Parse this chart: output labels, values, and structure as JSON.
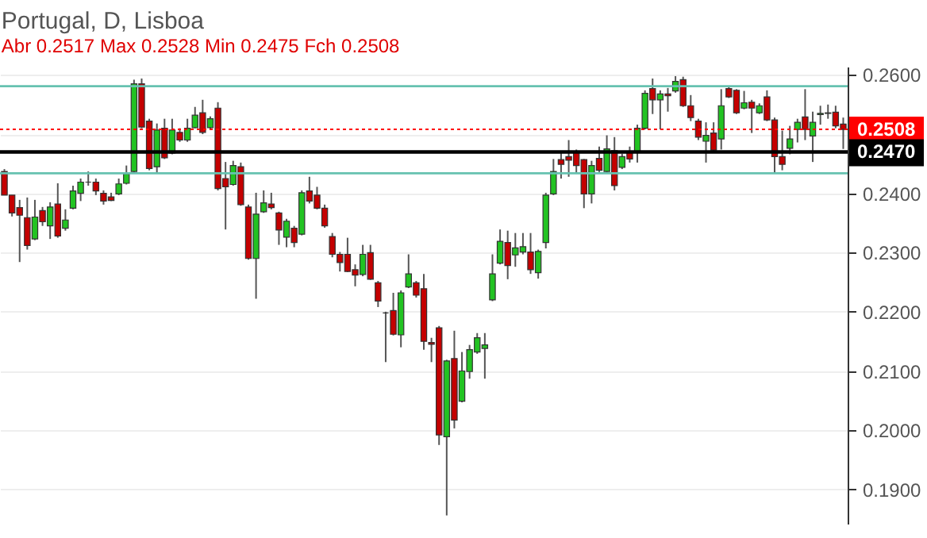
{
  "chart_data": {
    "type": "candlestick",
    "title": "Portugal, D, Lisboa",
    "annotations": [
      "Abr 0.2517 Max 0.2528 Min 0.2475 Fch 0.2508"
    ],
    "categories": [
      null,
      null,
      null,
      null,
      null,
      null,
      null,
      null,
      null,
      null,
      null,
      null,
      null,
      null,
      null,
      null,
      null,
      null,
      null,
      null,
      null,
      null,
      null,
      null,
      null,
      null,
      null,
      null,
      null,
      null,
      null,
      null,
      null,
      null,
      null,
      null,
      null,
      null,
      null,
      null,
      null,
      null,
      null,
      null,
      null,
      null,
      null,
      null,
      null,
      null,
      null,
      null,
      null,
      null,
      null,
      null,
      null,
      null,
      null,
      null,
      null,
      null,
      null,
      null,
      null,
      null,
      null,
      null,
      null,
      null,
      null,
      null,
      null,
      null,
      null,
      null,
      null,
      null,
      null,
      null,
      null,
      null,
      null,
      null,
      null,
      null,
      null,
      null,
      null,
      null,
      null,
      null,
      null,
      null,
      null,
      null,
      null,
      null,
      null,
      null,
      null,
      null,
      null,
      null,
      null,
      null,
      null,
      null,
      null,
      null,
      null
    ],
    "ohlc": [
      [
        0.2437,
        0.2441,
        0.2397,
        0.2397
      ],
      [
        0.2397,
        0.2397,
        0.2361,
        0.2367
      ],
      [
        0.2376,
        0.2389,
        0.2284,
        0.2363
      ],
      [
        0.2359,
        0.2393,
        0.2305,
        0.2312
      ],
      [
        0.2323,
        0.2389,
        0.2321,
        0.236
      ],
      [
        0.2371,
        0.2377,
        0.2345,
        0.2352
      ],
      [
        0.2345,
        0.2385,
        0.2323,
        0.2377
      ],
      [
        0.2382,
        0.2417,
        0.2325,
        0.2328
      ],
      [
        0.2341,
        0.2373,
        0.2337,
        0.2355
      ],
      [
        0.2375,
        0.2413,
        0.2373,
        0.2404
      ],
      [
        0.24,
        0.2425,
        0.2387,
        0.2419
      ],
      [
        0.2419,
        0.2437,
        0.2413,
        0.2419
      ],
      [
        0.2419,
        0.2425,
        0.2397,
        0.2404
      ],
      [
        0.24,
        0.2405,
        0.2381,
        0.2387
      ],
      [
        0.2394,
        0.2401,
        0.2387,
        0.2388
      ],
      [
        0.2399,
        0.2425,
        0.2397,
        0.2416
      ],
      [
        0.2417,
        0.2447,
        0.2415,
        0.2433
      ],
      [
        0.2437,
        0.2592,
        0.2436,
        0.2585
      ],
      [
        0.2585,
        0.2594,
        0.251,
        0.2512
      ],
      [
        0.2522,
        0.2526,
        0.2439,
        0.2442
      ],
      [
        0.2445,
        0.2518,
        0.2433,
        0.2507
      ],
      [
        0.251,
        0.2526,
        0.2458,
        0.246
      ],
      [
        0.2468,
        0.2526,
        0.2466,
        0.2507
      ],
      [
        0.2503,
        0.251,
        0.2487,
        0.249
      ],
      [
        0.249,
        0.2526,
        0.2487,
        0.251
      ],
      [
        0.2511,
        0.2546,
        0.251,
        0.2532
      ],
      [
        0.2536,
        0.2558,
        0.25,
        0.2503
      ],
      [
        0.2511,
        0.253,
        0.2508,
        0.2526
      ],
      [
        0.2544,
        0.2554,
        0.2405,
        0.2408
      ],
      [
        0.2425,
        0.2453,
        0.2339,
        0.2411
      ],
      [
        0.2415,
        0.2455,
        0.2413,
        0.2447
      ],
      [
        0.2445,
        0.2452,
        0.2379,
        0.2381
      ],
      [
        0.2377,
        0.2381,
        0.2288,
        0.229
      ],
      [
        0.229,
        0.2401,
        0.2222,
        0.2365
      ],
      [
        0.2369,
        0.2405,
        0.2367,
        0.2384
      ],
      [
        0.2382,
        0.2401,
        0.2373,
        0.2376
      ],
      [
        0.2367,
        0.2369,
        0.2313,
        0.2338
      ],
      [
        0.2326,
        0.2357,
        0.2309,
        0.2353
      ],
      [
        0.2341,
        0.2345,
        0.2309,
        0.2317
      ],
      [
        0.2331,
        0.2405,
        0.2329,
        0.2401
      ],
      [
        0.2404,
        0.2428,
        0.2383,
        0.2387
      ],
      [
        0.2397,
        0.2411,
        0.2373,
        0.2375
      ],
      [
        0.2375,
        0.2381,
        0.2342,
        0.2345
      ],
      [
        0.2327,
        0.2333,
        0.2292,
        0.2297
      ],
      [
        0.2297,
        0.2301,
        0.2268,
        0.2283
      ],
      [
        0.2297,
        0.2325,
        0.2267,
        0.2268
      ],
      [
        0.2271,
        0.228,
        0.2243,
        0.2262
      ],
      [
        0.2263,
        0.2313,
        0.226,
        0.2297
      ],
      [
        0.23,
        0.2313,
        0.2254,
        0.2255
      ],
      [
        0.2249,
        0.2252,
        0.2208,
        0.2218
      ],
      [
        0.2198,
        0.22,
        0.2115,
        0.2198
      ],
      [
        0.2202,
        0.2232,
        0.216,
        0.2162
      ],
      [
        0.2161,
        0.2236,
        0.214,
        0.2232
      ],
      [
        0.2242,
        0.2297,
        0.224,
        0.2264
      ],
      [
        0.2249,
        0.2252,
        0.2224,
        0.2228
      ],
      [
        0.2239,
        0.2264,
        0.2136,
        0.215
      ],
      [
        0.2148,
        0.2156,
        0.2115,
        0.2145
      ],
      [
        0.2173,
        0.2176,
        0.1975,
        0.1992
      ],
      [
        0.1989,
        0.2119,
        0.1856,
        0.2117
      ],
      [
        0.2121,
        0.2168,
        0.2003,
        0.2017
      ],
      [
        0.2049,
        0.2132,
        0.2047,
        0.21
      ],
      [
        0.2099,
        0.2144,
        0.2087,
        0.2136
      ],
      [
        0.2132,
        0.2164,
        0.2129,
        0.2156
      ],
      [
        0.2138,
        0.2164,
        0.2087,
        0.2144
      ],
      [
        0.222,
        0.2297,
        0.2218,
        0.2264
      ],
      [
        0.2282,
        0.2339,
        0.228,
        0.2319
      ],
      [
        0.2317,
        0.2337,
        0.2255,
        0.2278
      ],
      [
        0.2296,
        0.2333,
        0.2276,
        0.2308
      ],
      [
        0.2301,
        0.2333,
        0.2297,
        0.231
      ],
      [
        0.2301,
        0.2333,
        0.2264,
        0.2271
      ],
      [
        0.2266,
        0.2305,
        0.2256,
        0.2302
      ],
      [
        0.2317,
        0.2401,
        0.2307,
        0.2397
      ],
      [
        0.2399,
        0.2458,
        0.2397,
        0.2437
      ],
      [
        0.2457,
        0.247,
        0.2425,
        0.2449
      ],
      [
        0.2462,
        0.249,
        0.2428,
        0.2456
      ],
      [
        0.247,
        0.2474,
        0.2433,
        0.2447
      ],
      [
        0.2457,
        0.2458,
        0.2375,
        0.2399
      ],
      [
        0.2399,
        0.2455,
        0.2383,
        0.2447
      ],
      [
        0.2459,
        0.2479,
        0.2436,
        0.2439
      ],
      [
        0.2437,
        0.2498,
        0.2436,
        0.2475
      ],
      [
        0.2472,
        0.2495,
        0.2405,
        0.2413
      ],
      [
        0.2444,
        0.2467,
        0.2441,
        0.2462
      ],
      [
        0.247,
        0.2479,
        0.2452,
        0.2458
      ],
      [
        0.247,
        0.2516,
        0.2452,
        0.251
      ],
      [
        0.251,
        0.2574,
        0.2508,
        0.2569
      ],
      [
        0.2577,
        0.2594,
        0.2534,
        0.2558
      ],
      [
        0.2558,
        0.2574,
        0.2508,
        0.2568
      ],
      [
        0.2568,
        0.2578,
        0.2538,
        0.2565
      ],
      [
        0.2573,
        0.2598,
        0.257,
        0.2589
      ],
      [
        0.2592,
        0.2597,
        0.2546,
        0.2548
      ],
      [
        0.2548,
        0.2566,
        0.2522,
        0.2528
      ],
      [
        0.2522,
        0.2526,
        0.249,
        0.2495
      ],
      [
        0.2488,
        0.252,
        0.2452,
        0.2498
      ],
      [
        0.2502,
        0.252,
        0.247,
        0.2473
      ],
      [
        0.2492,
        0.2576,
        0.2474,
        0.2548
      ],
      [
        0.2577,
        0.2581,
        0.2561,
        0.2563
      ],
      [
        0.2574,
        0.2576,
        0.2534,
        0.2536
      ],
      [
        0.2544,
        0.2573,
        0.2542,
        0.2553
      ],
      [
        0.2554,
        0.2558,
        0.2502,
        0.2544
      ],
      [
        0.2536,
        0.2552,
        0.2534,
        0.2548
      ],
      [
        0.2563,
        0.2574,
        0.2522,
        0.2524
      ],
      [
        0.2524,
        0.2528,
        0.2435,
        0.2462
      ],
      [
        0.2462,
        0.2506,
        0.2439,
        0.2449
      ],
      [
        0.2476,
        0.2514,
        0.2466,
        0.2492
      ],
      [
        0.2508,
        0.2526,
        0.2486,
        0.252
      ],
      [
        0.2529,
        0.2576,
        0.249,
        0.2508
      ],
      [
        0.2497,
        0.2538,
        0.2453,
        0.252
      ],
      [
        0.2533,
        0.2548,
        0.2516,
        0.2535
      ],
      [
        0.2535,
        0.255,
        0.2526,
        0.2536
      ],
      [
        0.2537,
        0.2548,
        0.251,
        0.2514
      ],
      [
        0.2517,
        0.2528,
        0.2475,
        0.2508
      ]
    ],
    "ylim": [
      0.1842,
      0.2614
    ],
    "yticks": [
      {
        "value": 0.19,
        "label": "0.1900"
      },
      {
        "value": 0.2,
        "label": "0.2000"
      },
      {
        "value": 0.21,
        "label": "0.2100"
      },
      {
        "value": 0.22,
        "label": "0.2200"
      },
      {
        "value": 0.23,
        "label": "0.2300"
      },
      {
        "value": 0.24,
        "label": "0.2400"
      },
      {
        "value": 0.25,
        "label": null
      },
      {
        "value": 0.26,
        "label": "0.2600"
      }
    ],
    "tick_labels": "y",
    "grid": "y",
    "ref_lines": [
      {
        "axis": "y",
        "value": 0.2508,
        "label": "0.2508",
        "color": "#ff0000",
        "line_style": "dotted"
      },
      {
        "axis": "y",
        "value": 0.247,
        "label": "0.2470",
        "color": "#000000",
        "line_style": "solid"
      },
      {
        "axis": "y",
        "value": 0.2581,
        "color": "#66c2b0",
        "line_style": "solid"
      },
      {
        "axis": "y",
        "value": 0.2434,
        "color": "#66c2b0",
        "line_style": "solid"
      }
    ]
  }
}
